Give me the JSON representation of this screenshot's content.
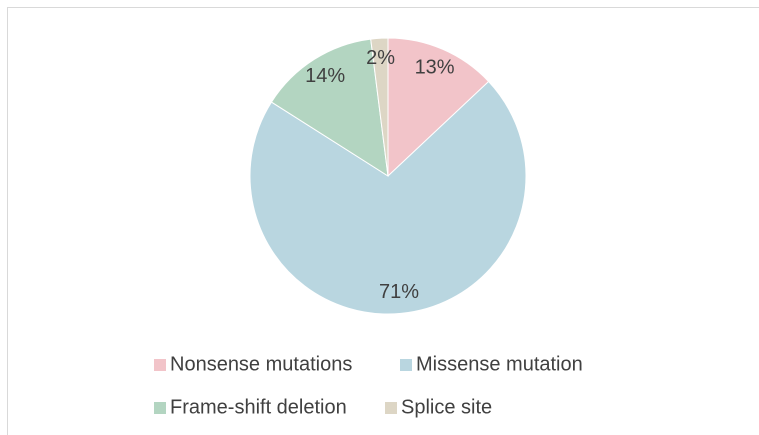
{
  "chart_data": {
    "type": "pie",
    "categories": [
      "Nonsense mutations",
      "Missense mutation",
      "Frame-shift deletion",
      "Splice site"
    ],
    "values": [
      13,
      71,
      14,
      2
    ],
    "value_labels": [
      "13%",
      "71%",
      "14%",
      "2%"
    ],
    "colors": [
      "#f2c4c9",
      "#b9d6e0",
      "#b3d5c1",
      "#ddd6c5"
    ],
    "legend": "bottom"
  }
}
